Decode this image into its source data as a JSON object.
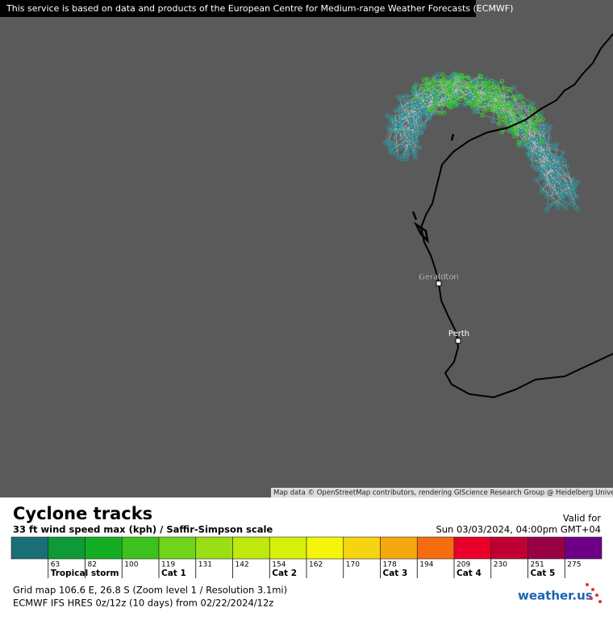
{
  "banner": "This service is based on data and products of the European Centre for Medium-range Weather Forecasts (ECMWF)",
  "map_attribution": "Map data © OpenStreetMap contributors, rendering GIScience Research Group @ Heidelberg University",
  "places": [
    "Geraldton",
    "Perth"
  ],
  "legend": {
    "title": "Cyclone tracks",
    "subtitle": "33 ft wind speed max (kph) / Saffir-Simpson scale",
    "valid_label": "Valid for",
    "valid_time": "Sun 03/03/2024, 04:00pm GMT+04",
    "colors": [
      "#1a6e76",
      "#0e9a36",
      "#14ae25",
      "#3dc21d",
      "#72d41a",
      "#9ade16",
      "#bfe80e",
      "#d8ef0a",
      "#f5f50a",
      "#f7d411",
      "#f5a70f",
      "#f56d10",
      "#e8002a",
      "#c00033",
      "#990044",
      "#6d0086"
    ],
    "thresholds": [
      63,
      82,
      100,
      119,
      131,
      142,
      154,
      162,
      170,
      178,
      194,
      209,
      230,
      251,
      275
    ],
    "category_labels": [
      "Tropical storm",
      null,
      null,
      "Cat 1",
      null,
      null,
      "Cat 2",
      null,
      null,
      "Cat 3",
      null,
      "Cat 4",
      null,
      "Cat 5",
      null
    ]
  },
  "footer": {
    "grid": "Grid map 106.6 E, 26.8 S (Zoom level 1 / Resolution 3.1mi)",
    "model": "ECMWF IFS HRES 0z/12z (10 days) from  02/22/2024/12z",
    "logo": "weather.us"
  }
}
